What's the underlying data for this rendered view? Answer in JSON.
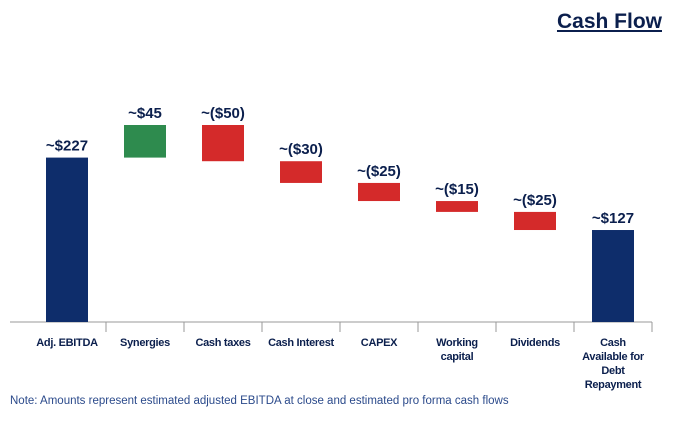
{
  "chart_data": {
    "type": "waterfall",
    "title": "Cash Flow",
    "categories": [
      "Adj. EBITDA",
      "Synergies",
      "Cash taxes",
      "Cash Interest",
      "CAPEX",
      "Working capital",
      "Dividends",
      "Cash Available for Debt Repayment"
    ],
    "values": [
      227,
      45,
      -50,
      -30,
      -25,
      -15,
      -25,
      127
    ],
    "value_labels": [
      "~$227",
      "~$45",
      "~($50)",
      "~($30)",
      "~($25)",
      "~($15)",
      "~($25)",
      "~$127"
    ],
    "is_total": [
      true,
      false,
      false,
      false,
      false,
      false,
      false,
      true
    ],
    "total_color": "#0e2d6b",
    "increase_color": "#2e8b4e",
    "decrease_color": "#d42a2a",
    "note": "Note: Amounts represent estimated adjusted EBITDA at close and estimated pro forma cash flows"
  }
}
